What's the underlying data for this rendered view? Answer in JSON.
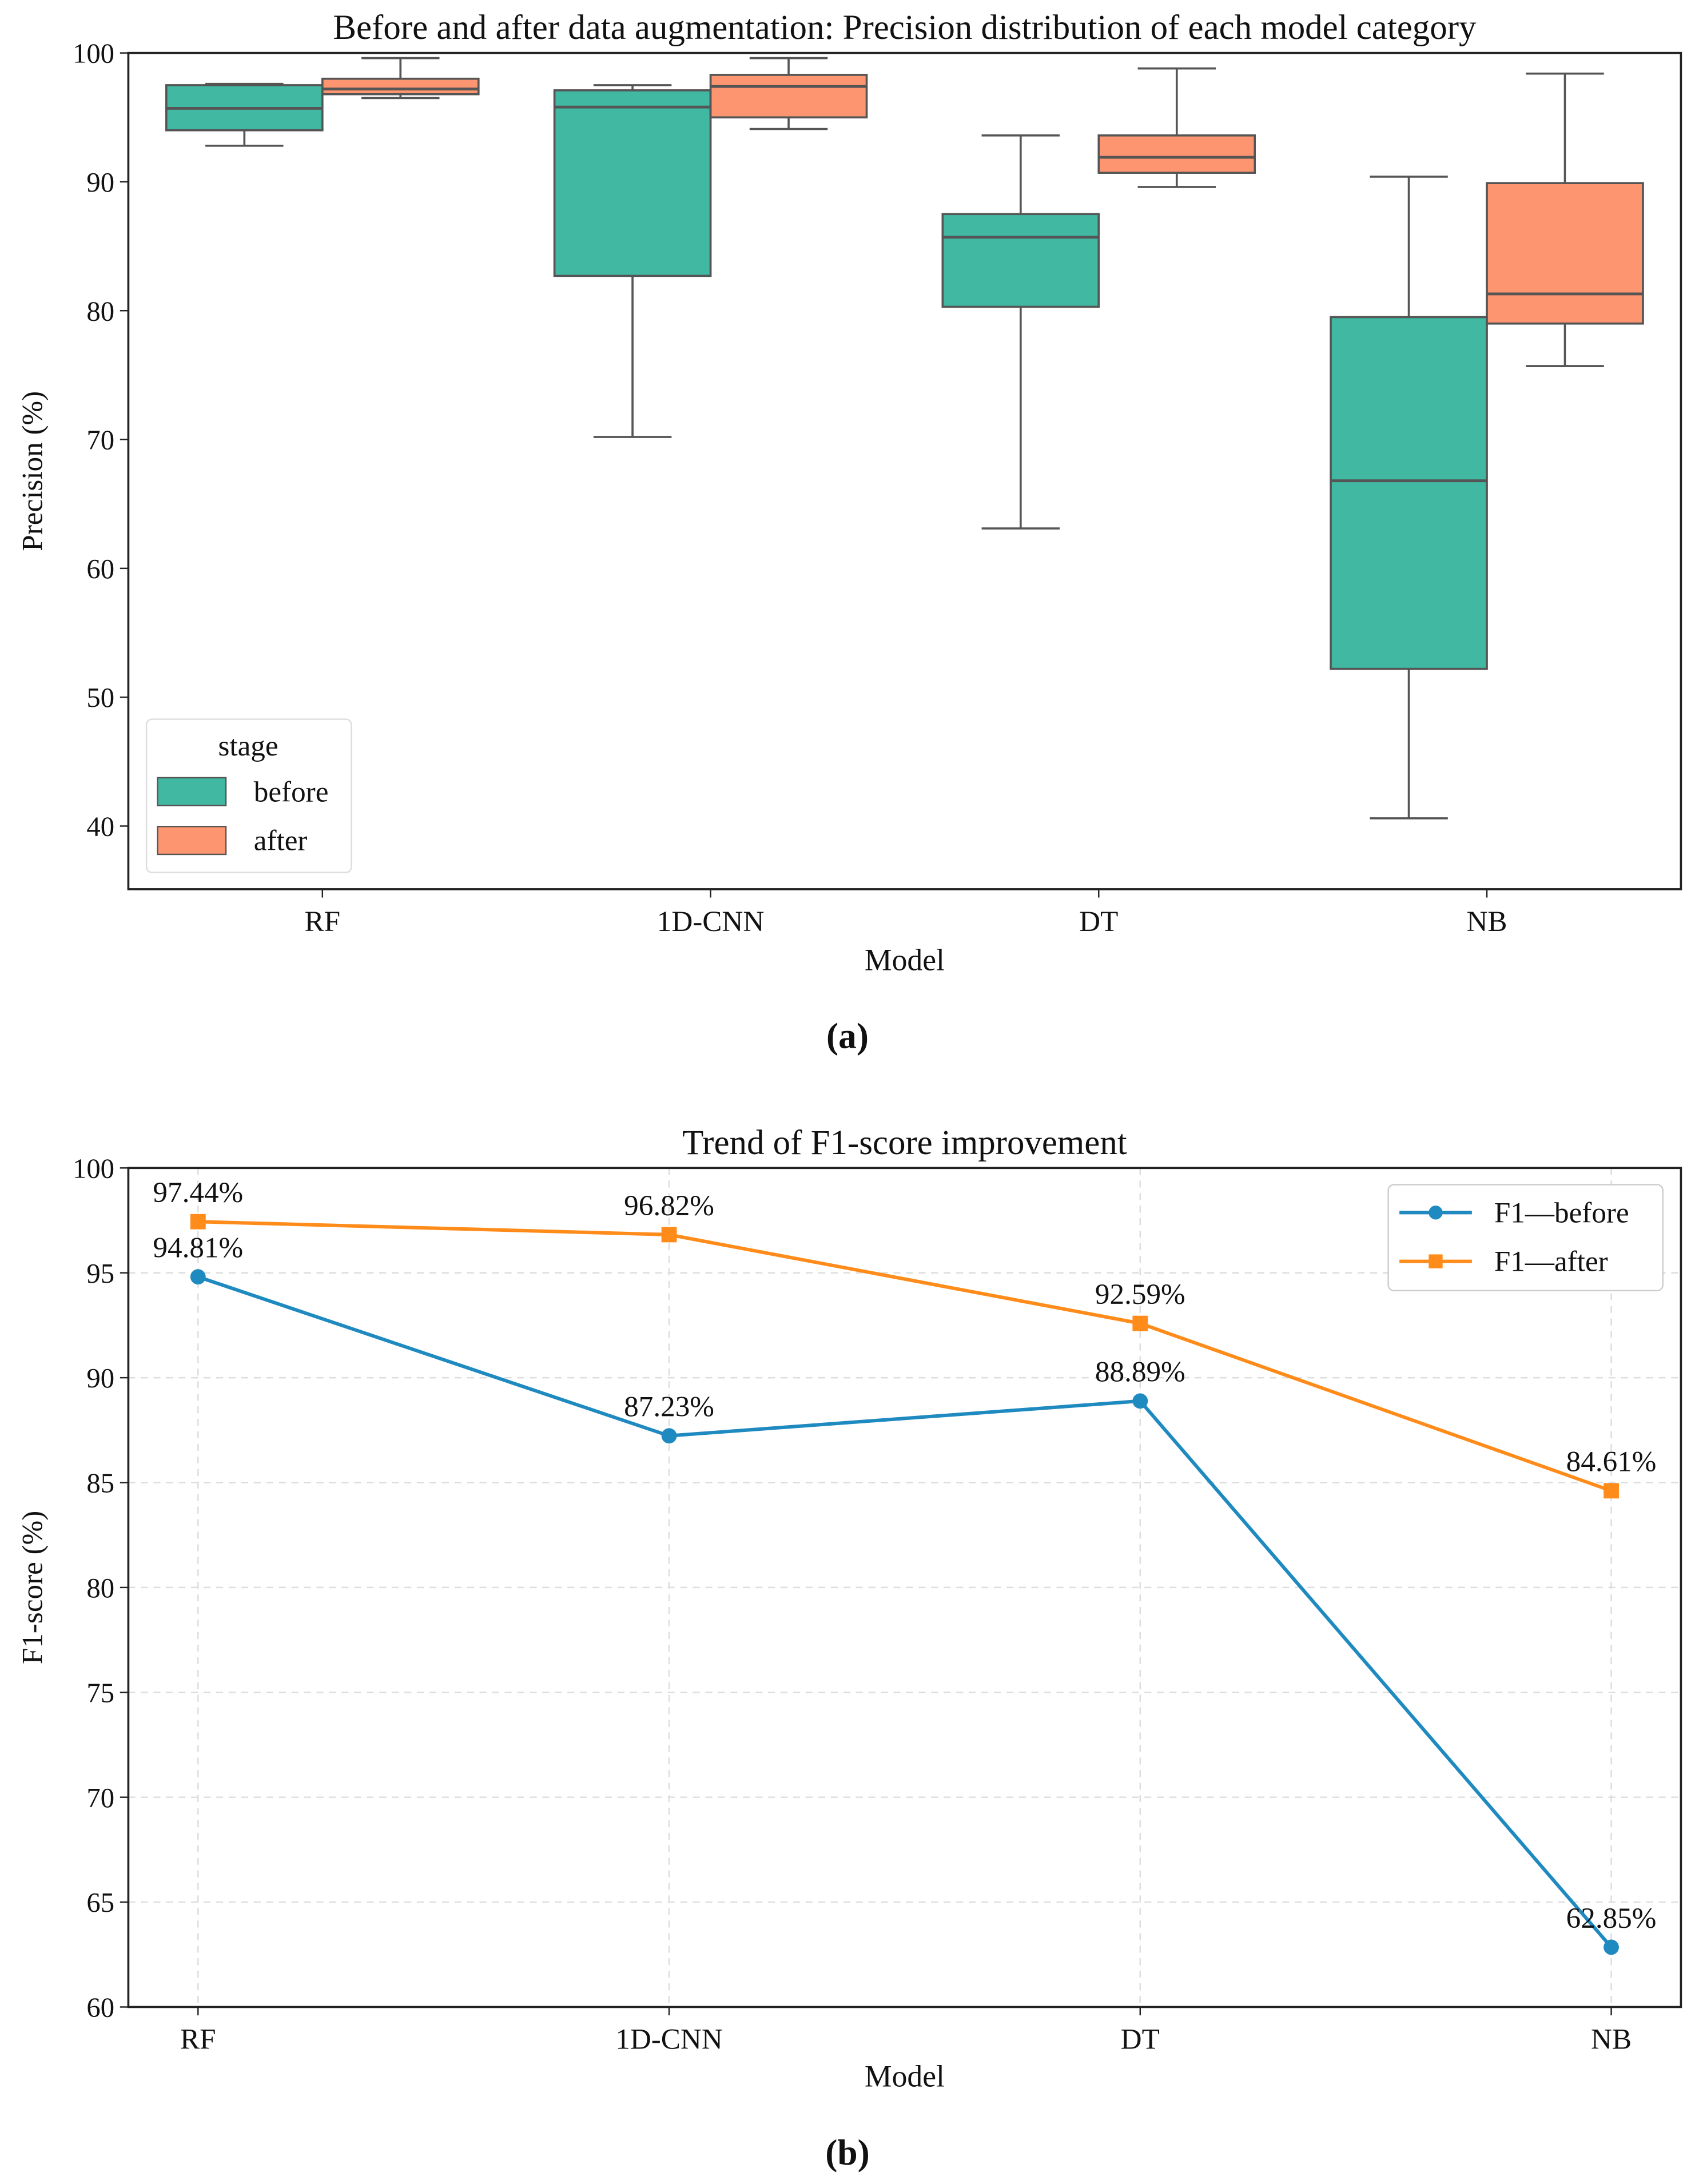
{
  "chart_data": [
    {
      "type": "box",
      "title": "Before and after data augmentation: Precision distribution of each model category",
      "xlabel": "Model",
      "ylabel": "Precision (%)",
      "ylim": [
        35.1,
        100
      ],
      "yticks": [
        40,
        50,
        60,
        70,
        80,
        90,
        100
      ],
      "categories": [
        "RF",
        "1D-CNN",
        "DT",
        "NB"
      ],
      "legend": {
        "title": "stage",
        "placement": "lower-left",
        "entries": [
          "before",
          "after"
        ]
      },
      "series": [
        {
          "name": "before",
          "color": "#40b8a2",
          "boxes": [
            {
              "min": 92.8,
              "q1": 94.0,
              "median": 95.7,
              "q3": 97.5,
              "max": 97.6
            },
            {
              "min": 70.2,
              "q1": 82.7,
              "median": 95.8,
              "q3": 97.1,
              "max": 97.5
            },
            {
              "min": 63.1,
              "q1": 80.3,
              "median": 85.7,
              "q3": 87.5,
              "max": 93.6
            },
            {
              "min": 40.6,
              "q1": 52.2,
              "median": 66.8,
              "q3": 79.5,
              "max": 90.4
            }
          ]
        },
        {
          "name": "after",
          "color": "#fd9570",
          "boxes": [
            {
              "min": 96.5,
              "q1": 96.8,
              "median": 97.2,
              "q3": 98.0,
              "max": 99.6
            },
            {
              "min": 94.1,
              "q1": 95.0,
              "median": 97.4,
              "q3": 98.3,
              "max": 99.6
            },
            {
              "min": 89.6,
              "q1": 90.7,
              "median": 91.9,
              "q3": 93.6,
              "max": 98.8
            },
            {
              "min": 75.7,
              "q1": 79.0,
              "median": 81.3,
              "q3": 89.9,
              "max": 98.4
            }
          ]
        }
      ],
      "caption": "(a)"
    },
    {
      "type": "line",
      "title": "Trend of F1-score improvement",
      "xlabel": "Model",
      "ylabel": "F1-score (%)",
      "ylim": [
        60,
        100
      ],
      "yticks": [
        60,
        65,
        70,
        75,
        80,
        85,
        90,
        95,
        100
      ],
      "categories": [
        "RF",
        "1D-CNN",
        "DT",
        "NB"
      ],
      "grid": true,
      "legend": {
        "placement": "top-right",
        "entries": [
          "F1—before",
          "F1—after"
        ]
      },
      "series": [
        {
          "name": "F1—before",
          "color": "#1f8ac0",
          "marker": "circle",
          "values": [
            94.81,
            87.23,
            88.89,
            62.85
          ],
          "labels": [
            "94.81%",
            "87.23%",
            "88.89%",
            "62.85%"
          ]
        },
        {
          "name": "F1—after",
          "color": "#ff8c1a",
          "marker": "square",
          "values": [
            97.44,
            96.82,
            92.59,
            84.61
          ],
          "labels": [
            "97.44%",
            "96.82%",
            "92.59%",
            "84.61%"
          ]
        }
      ],
      "caption": "(b)"
    }
  ]
}
